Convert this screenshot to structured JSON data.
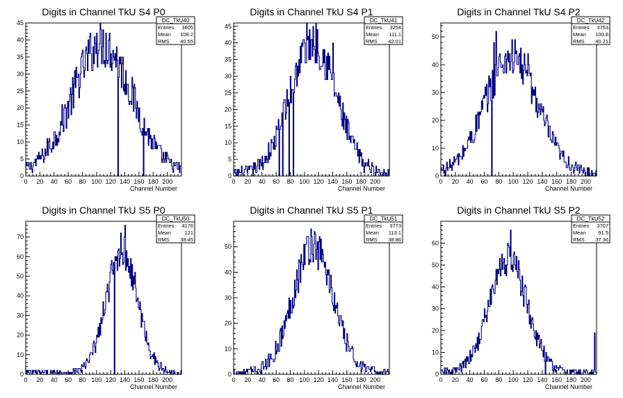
{
  "chart_data": [
    {
      "type": "histogram",
      "title": "Digits in Channel TkU S4 P0",
      "xlabel": "Channel Number",
      "ylabel": "",
      "xlim": [
        0,
        220
      ],
      "ylim": [
        0,
        45
      ],
      "xticks": [
        0,
        20,
        40,
        60,
        80,
        100,
        120,
        140,
        160,
        180,
        200
      ],
      "yticks": [
        0,
        5,
        10,
        15,
        20,
        25,
        30,
        35,
        40,
        45
      ],
      "stats": {
        "name": "DC_TkU40",
        "rows": [
          {
            "label": "Entries",
            "value": "3605"
          },
          {
            "label": "Mean",
            "value": "108.2"
          },
          {
            "label": "RMS",
            "value": "40.55"
          }
        ]
      },
      "shape": {
        "center": 108,
        "sigma": 42,
        "peak": 38
      },
      "spikes": [
        {
          "ch": 130,
          "v": 0
        },
        {
          "ch": 166,
          "v": 0
        },
        {
          "ch": 109,
          "v": 43
        },
        {
          "ch": 113,
          "v": 42
        },
        {
          "ch": 100,
          "v": 42
        }
      ]
    },
    {
      "type": "histogram",
      "title": "Digits in Channel TkU S4 P1",
      "xlabel": "Channel Number",
      "ylabel": "",
      "xlim": [
        0,
        220
      ],
      "ylim": [
        0,
        46
      ],
      "xticks": [
        0,
        20,
        40,
        60,
        80,
        100,
        120,
        140,
        160,
        180,
        200
      ],
      "yticks": [
        0,
        5,
        10,
        15,
        20,
        25,
        30,
        35,
        40,
        45
      ],
      "stats": {
        "name": "DC_TkU41",
        "rows": [
          {
            "label": "Entries",
            "value": "3254"
          },
          {
            "label": "Mean",
            "value": "111.1"
          },
          {
            "label": "RMS",
            "value": "42.01"
          }
        ]
      },
      "shape": {
        "center": 112,
        "sigma": 32,
        "peak": 40
      },
      "spikes": [
        {
          "ch": 64,
          "v": 0
        },
        {
          "ch": 69,
          "v": 0
        },
        {
          "ch": 78,
          "v": 0
        },
        {
          "ch": 84,
          "v": 0
        },
        {
          "ch": 107,
          "v": 44
        },
        {
          "ch": 140,
          "v": 40
        }
      ]
    },
    {
      "type": "histogram",
      "title": "Digits in Channel TkU S4 P2",
      "xlabel": "Channel Number",
      "ylabel": "",
      "xlim": [
        0,
        215
      ],
      "ylim": [
        0,
        55
      ],
      "xticks": [
        0,
        20,
        40,
        60,
        80,
        100,
        120,
        140,
        160,
        180,
        200
      ],
      "yticks": [
        0,
        10,
        20,
        30,
        40,
        50
      ],
      "stats": {
        "name": "DC_TkU42",
        "rows": [
          {
            "label": "Entries",
            "value": "3753"
          },
          {
            "label": "Mean",
            "value": "100.8"
          },
          {
            "label": "RMS",
            "value": "40.21"
          }
        ]
      },
      "shape": {
        "center": 97,
        "sigma": 36,
        "peak": 42
      },
      "spikes": [
        {
          "ch": 70,
          "v": 0
        },
        {
          "ch": 76,
          "v": 52
        },
        {
          "ch": 73,
          "v": 48
        },
        {
          "ch": 120,
          "v": 44
        }
      ]
    },
    {
      "type": "histogram",
      "title": "Digits in Channel TkU S5 P0",
      "xlabel": "Channel Number",
      "ylabel": "",
      "xlim": [
        0,
        220
      ],
      "ylim": [
        0,
        78
      ],
      "xticks": [
        0,
        20,
        40,
        60,
        80,
        100,
        120,
        140,
        160,
        180,
        200
      ],
      "yticks": [
        0,
        10,
        20,
        30,
        40,
        50,
        60,
        70
      ],
      "stats": {
        "name": "DC_TkU50",
        "rows": [
          {
            "label": "Entries",
            "value": "4176"
          },
          {
            "label": "Mean",
            "value": "121"
          },
          {
            "label": "RMS",
            "value": "38.45"
          }
        ]
      },
      "shape": {
        "center": 136,
        "sigma": 22,
        "peak": 62
      },
      "spikes": [
        {
          "ch": 125,
          "v": 0
        },
        {
          "ch": 140,
          "v": 76
        },
        {
          "ch": 134,
          "v": 72
        }
      ]
    },
    {
      "type": "histogram",
      "title": "Digits in Channel TkU S5 P1",
      "xlabel": "Channel Number",
      "ylabel": "",
      "xlim": [
        0,
        220
      ],
      "ylim": [
        0,
        60
      ],
      "xticks": [
        0,
        20,
        40,
        60,
        80,
        100,
        120,
        140,
        160,
        180,
        200
      ],
      "yticks": [
        0,
        10,
        20,
        30,
        40,
        50
      ],
      "stats": {
        "name": "DC_TkU51",
        "rows": [
          {
            "label": "Entries",
            "value": "3773"
          },
          {
            "label": "Mean",
            "value": "113.1"
          },
          {
            "label": "RMS",
            "value": "38.86"
          }
        ]
      },
      "shape": {
        "center": 112,
        "sigma": 28,
        "peak": 50
      },
      "spikes": [
        {
          "ch": 109,
          "v": 57
        },
        {
          "ch": 118,
          "v": 52
        }
      ]
    },
    {
      "type": "histogram",
      "title": "Digits in Channel TkU S5 P2",
      "xlabel": "Channel Number",
      "ylabel": "",
      "xlim": [
        0,
        215
      ],
      "ylim": [
        0,
        70
      ],
      "xticks": [
        0,
        20,
        40,
        60,
        80,
        100,
        120,
        140,
        160,
        180,
        200
      ],
      "yticks": [
        0,
        10,
        20,
        30,
        40,
        50,
        60
      ],
      "stats": {
        "name": "DC_TkU52",
        "rows": [
          {
            "label": "Entries",
            "value": "3707"
          },
          {
            "label": "Mean",
            "value": "91.5"
          },
          {
            "label": "RMS",
            "value": "37.36"
          }
        ]
      },
      "shape": {
        "center": 93,
        "sigma": 26,
        "peak": 52
      },
      "spikes": [
        {
          "ch": 96,
          "v": 66
        },
        {
          "ch": 144,
          "v": 0
        },
        {
          "ch": 212,
          "v": 19
        }
      ]
    }
  ],
  "colors": {
    "line": "#000080",
    "frame": "#000000",
    "background": "#ffffff"
  }
}
